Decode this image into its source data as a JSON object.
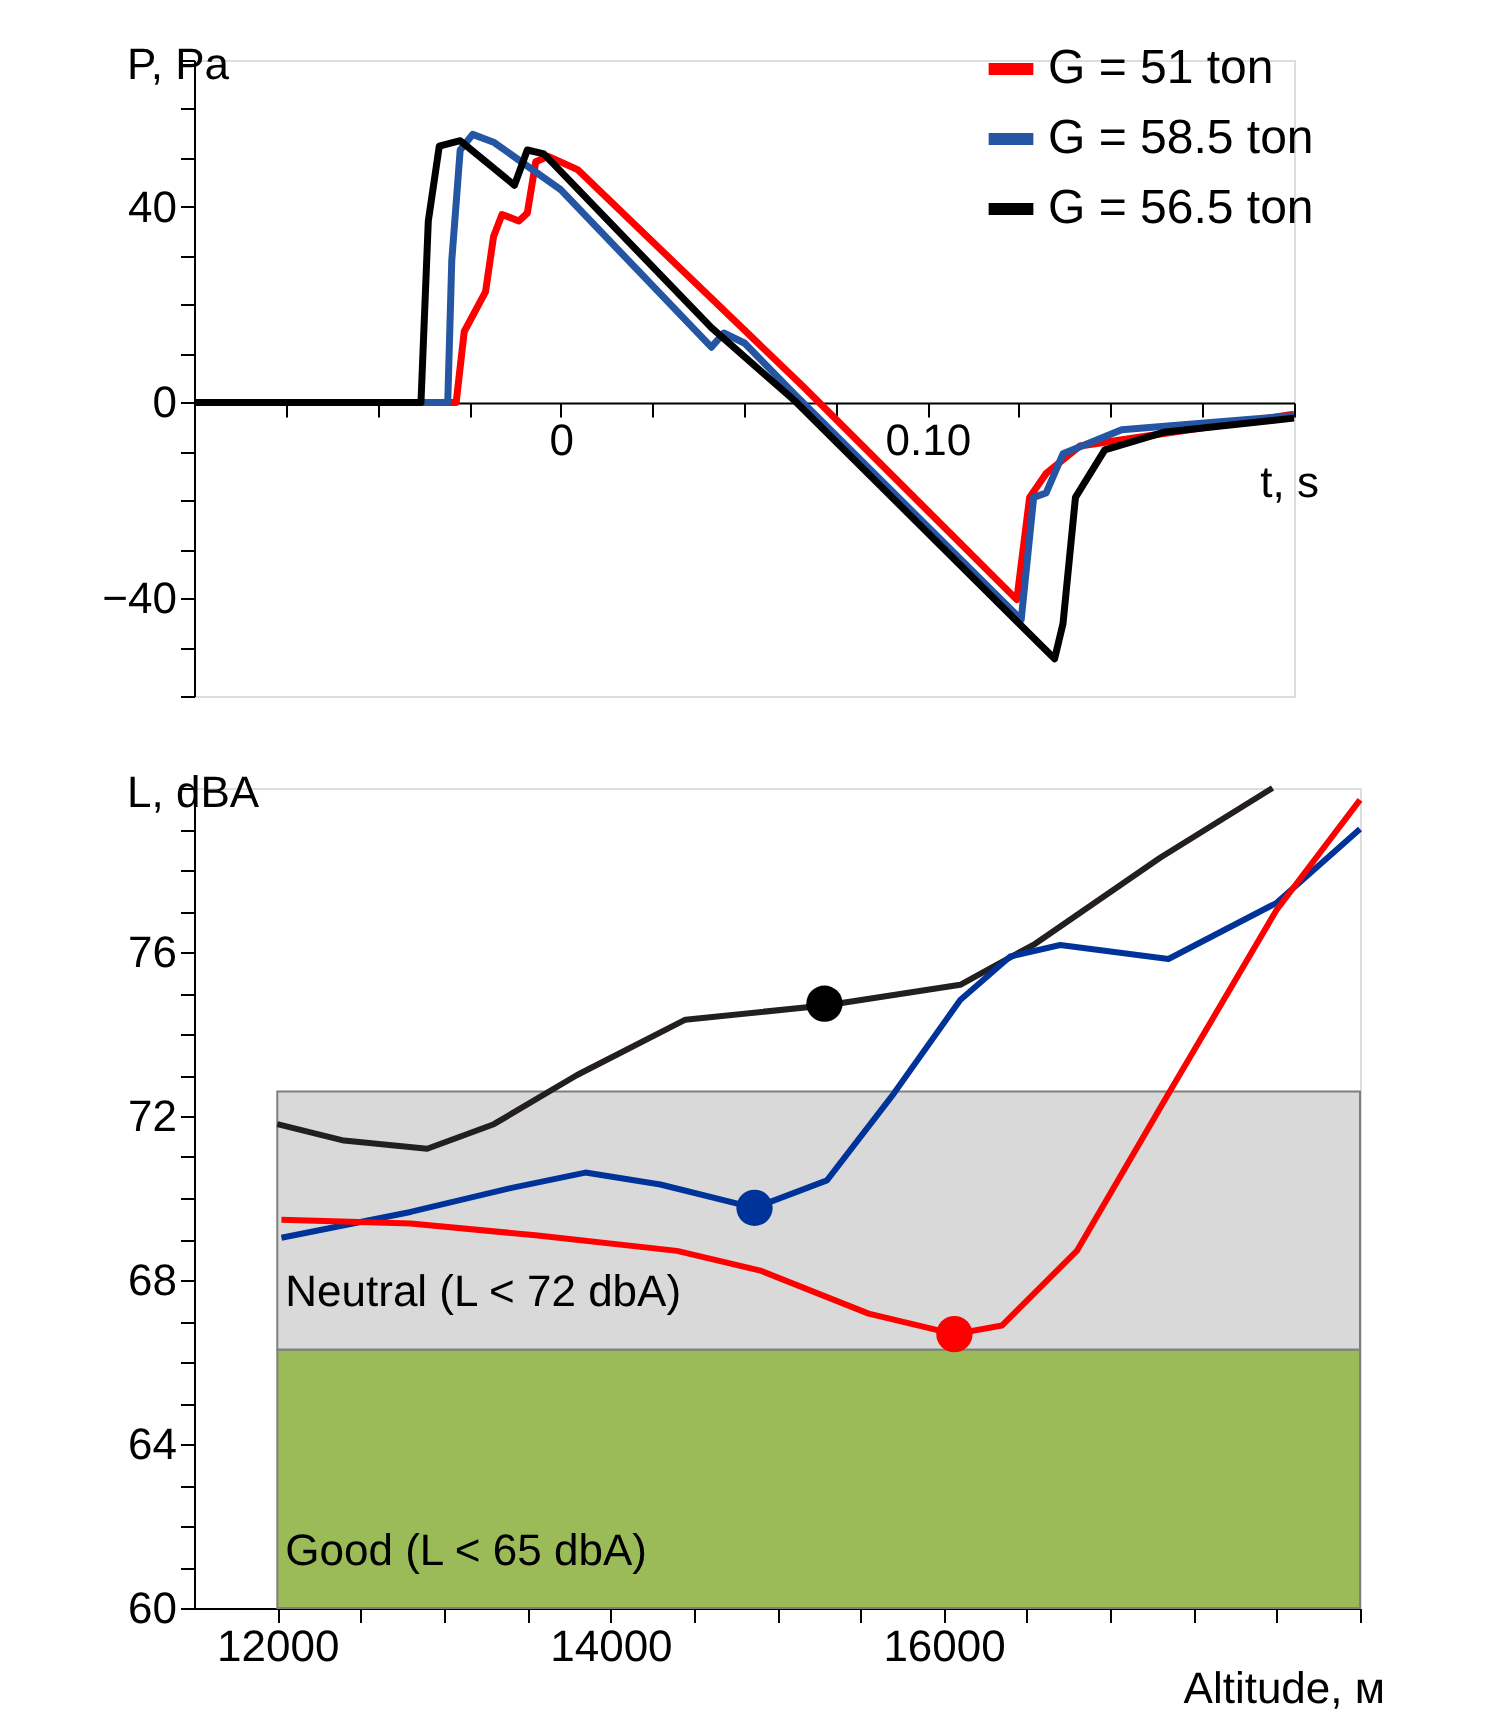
{
  "chart_data": [
    {
      "type": "line",
      "xlabel": "t, s",
      "ylabel": "P, Pa",
      "xlim": [
        -0.1,
        0.2
      ],
      "ylim": [
        -60,
        70
      ],
      "xticks": [
        {
          "value": -0.1,
          "label": null
        },
        {
          "value": -0.075,
          "label": null
        },
        {
          "value": -0.05,
          "label": null
        },
        {
          "value": -0.025,
          "label": null
        },
        0,
        {
          "value": 0.025,
          "label": null
        },
        {
          "value": 0.05,
          "label": null
        },
        {
          "value": 0.075,
          "label": null
        },
        {
          "value": 0.1,
          "label": "0.10"
        },
        {
          "value": 0.125,
          "label": null
        },
        {
          "value": 0.15,
          "label": null
        },
        {
          "value": 0.175,
          "label": null
        },
        {
          "value": 0.2,
          "label": null
        }
      ],
      "yticks": [
        {
          "value": -60,
          "label": null
        },
        {
          "value": -50,
          "label": null
        },
        -40,
        {
          "value": -30,
          "label": null
        },
        {
          "value": -20,
          "label": null
        },
        {
          "value": -10,
          "label": null
        },
        0,
        {
          "value": 10,
          "label": null
        },
        {
          "value": 20,
          "label": null
        },
        {
          "value": 30,
          "label": null
        },
        40,
        {
          "value": 50,
          "label": null
        },
        {
          "value": 60,
          "label": null
        },
        {
          "value": 70,
          "label": null
        }
      ],
      "legend": "top right",
      "series": [
        {
          "name": "G = 51 ton",
          "color": "#ff0000",
          "x": [
            -0.1,
            -0.0285,
            -0.0263,
            -0.0205,
            -0.0183,
            -0.016,
            -0.0114,
            -0.0091,
            -0.0068,
            -0.0034,
            0.0046,
            0.0662,
            0.1244,
            0.1279,
            0.1324,
            0.1416,
            0.2
          ],
          "values": [
            0,
            0,
            14.5,
            22.6,
            33.9,
            38.4,
            37.1,
            38.7,
            49.2,
            50.3,
            47.6,
            3.2,
            -40.3,
            -19.4,
            -14.5,
            -8.9,
            -2.4
          ]
        },
        {
          "name": "G = 58.5 ton",
          "color": "#2456a4",
          "x": [
            -0.1,
            -0.0308,
            -0.0297,
            -0.0274,
            -0.024,
            -0.0183,
            0,
            0.0411,
            0.0445,
            0.0502,
            0.0639,
            0.1256,
            0.129,
            0.1324,
            0.137,
            0.153,
            0.2
          ],
          "values": [
            0,
            0,
            29,
            51.6,
            54.8,
            53.2,
            43.5,
            11.3,
            14.2,
            12.1,
            1.6,
            -44.4,
            -19.4,
            -18.5,
            -10.5,
            -5.6,
            -2.7
          ]
        },
        {
          "name": "G = 56.5 ton",
          "color": "#000000",
          "x": [
            -0.1,
            -0.0381,
            -0.0361,
            -0.0331,
            -0.0274,
            -0.0126,
            -0.0091,
            -0.0046,
            0.0411,
            0.0639,
            0.1347,
            0.137,
            0.1404,
            0.1484,
            0.1644,
            0.2
          ],
          "values": [
            0,
            0,
            37.1,
            52.4,
            53.5,
            44.4,
            51.6,
            50.8,
            15.3,
            0.3,
            -52.4,
            -45.2,
            -19.4,
            -9.7,
            -6.1,
            -3.2
          ]
        }
      ]
    },
    {
      "type": "line",
      "xlabel": "Altitude, м",
      "ylabel": "L, dBA",
      "xlim": [
        11500,
        18500
      ],
      "ylim": [
        60,
        80
      ],
      "xticks": [
        12000,
        {
          "value": 12500,
          "label": null
        },
        {
          "value": 13000,
          "label": null
        },
        {
          "value": 13500,
          "label": null
        },
        14000,
        {
          "value": 14500,
          "label": null
        },
        {
          "value": 15000,
          "label": null
        },
        {
          "value": 15500,
          "label": null
        },
        16000,
        {
          "value": 16500,
          "label": null
        },
        {
          "value": 17000,
          "label": null
        },
        {
          "value": 17500,
          "label": null
        },
        {
          "value": 18000,
          "label": null
        },
        {
          "value": 18500,
          "label": null
        }
      ],
      "yticks": [
        60,
        {
          "value": 61,
          "label": null
        },
        {
          "value": 62,
          "label": null
        },
        {
          "value": 63,
          "label": null
        },
        64,
        {
          "value": 65,
          "label": null
        },
        {
          "value": 66,
          "label": null
        },
        {
          "value": 67,
          "label": null
        },
        68,
        {
          "value": 69,
          "label": null
        },
        {
          "value": 70,
          "label": null
        },
        {
          "value": 71,
          "label": null
        },
        72,
        {
          "value": 73,
          "label": null
        },
        {
          "value": 74,
          "label": null
        },
        {
          "value": 75,
          "label": null
        },
        76,
        {
          "value": 77,
          "label": null
        },
        {
          "value": 78,
          "label": null
        },
        {
          "value": 79,
          "label": null
        },
        {
          "value": 80,
          "label": null
        }
      ],
      "bands": [
        {
          "axis": "y",
          "from": 66.3,
          "to": 72.6,
          "label": "Neutral (L < 72 dbA)",
          "color": "#d9d9d9"
        },
        {
          "axis": "y",
          "from": 60,
          "to": 66.3,
          "label": "Good (L < 65 dbA)",
          "color": "#9bbb59"
        }
      ],
      "series": [
        {
          "color": "#231f20",
          "x": [
            12000,
            12400,
            12900,
            13300,
            13800,
            14450,
            15300,
            16100,
            16550,
            17300,
            17975
          ],
          "values": [
            71.8,
            71.4,
            71.2,
            71.8,
            73.0,
            74.35,
            74.7,
            75.2,
            76.2,
            78.3,
            80
          ]
        },
        {
          "color": "#003399",
          "x": [
            12025,
            12800,
            13400,
            13850,
            14300,
            14865,
            15300,
            15700,
            16100,
            16400,
            16700,
            17350,
            18000,
            18500
          ],
          "values": [
            69.03,
            69.66,
            70.24,
            70.62,
            70.33,
            69.76,
            70.43,
            72.54,
            74.83,
            75.89,
            76.17,
            75.83,
            77.2,
            79.0
          ]
        },
        {
          "color": "#ff0000",
          "x": [
            12025,
            12800,
            13550,
            14400,
            14900,
            15550,
            16065,
            16350,
            16800,
            17350,
            18000,
            18500
          ],
          "values": [
            69.47,
            69.38,
            69.09,
            68.71,
            68.23,
            67.18,
            66.68,
            66.89,
            68.71,
            72.54,
            77.03,
            79.71
          ]
        },
        {
          "type": "scatter",
          "color": "#000000",
          "x": [
            15285
          ],
          "values": [
            74.74
          ]
        },
        {
          "type": "scatter",
          "color": "#003399",
          "x": [
            14865
          ],
          "values": [
            69.76
          ]
        },
        {
          "type": "scatter",
          "color": "#ff0000",
          "x": [
            16065
          ],
          "values": [
            66.68
          ]
        }
      ]
    }
  ]
}
